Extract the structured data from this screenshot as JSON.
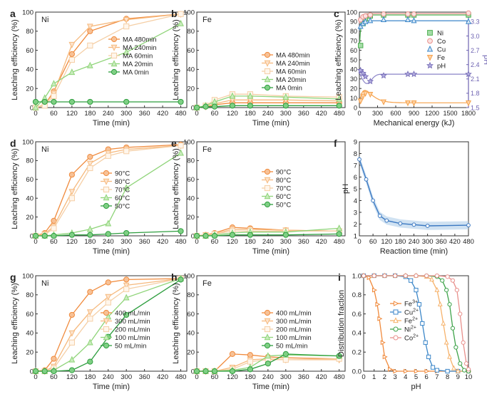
{
  "figure_colors": {
    "c1": "#f08a3c",
    "c2": "#f6b97d",
    "c3": "#f5cfa6",
    "c4": "#8fd479",
    "c5": "#2e9e3f",
    "ni": "#4caf50",
    "co": "#e8908c",
    "cu": "#3b86c8",
    "fe": "#f6a14a",
    "ph": "#6e63b2",
    "fit_purple": "#8a83c7",
    "blue_line": "#3a78c2",
    "blue_band": "#a9cbe8"
  },
  "chart_data": [
    {
      "id": "a",
      "panel_label": "a",
      "type": "line",
      "element": "Ni",
      "xlabel": "Time (min)",
      "ylabel": "Leaching efficiency (%)",
      "xlim": [
        0,
        500
      ],
      "ylim": [
        0,
        100
      ],
      "xticks": [
        0,
        60,
        120,
        180,
        240,
        300,
        360,
        420,
        480
      ],
      "yticks": [
        0,
        20,
        40,
        60,
        80,
        100
      ],
      "x": [
        0,
        30,
        60,
        120,
        180,
        300,
        480
      ],
      "series": [
        {
          "name": "MA 480min",
          "values": [
            0,
            3,
            17,
            56,
            80,
            93,
            98
          ]
        },
        {
          "name": "MA 240min",
          "values": [
            0,
            3,
            15,
            66,
            85,
            92,
            98
          ]
        },
        {
          "name": "MA 60min",
          "values": [
            0,
            2,
            12,
            50,
            65,
            85,
            98
          ]
        },
        {
          "name": "MA 20min",
          "values": [
            0,
            10,
            25,
            37,
            44,
            58,
            88
          ]
        },
        {
          "name": "MA 0min",
          "values": [
            6,
            6,
            6,
            6,
            6,
            6,
            6
          ]
        }
      ]
    },
    {
      "id": "b",
      "panel_label": "b",
      "type": "line",
      "element": "Fe",
      "xlabel": "Time (min)",
      "ylabel": "Leaching efficiency (%)",
      "xlim": [
        0,
        500
      ],
      "ylim": [
        0,
        100
      ],
      "xticks": [
        0,
        60,
        120,
        180,
        240,
        300,
        360,
        420,
        480
      ],
      "yticks": [
        0,
        20,
        40,
        60,
        80,
        100
      ],
      "x": [
        0,
        30,
        60,
        120,
        180,
        300,
        480
      ],
      "series": [
        {
          "name": "MA 480min",
          "values": [
            0,
            1,
            3,
            5,
            5,
            5,
            5
          ]
        },
        {
          "name": "MA 240min",
          "values": [
            0,
            1,
            4,
            8,
            8,
            8,
            7
          ]
        },
        {
          "name": "MA 60min",
          "values": [
            0,
            2,
            8,
            14,
            14,
            12,
            11
          ]
        },
        {
          "name": "MA 20min",
          "values": [
            0,
            2,
            6,
            12,
            12,
            11,
            9
          ]
        },
        {
          "name": "MA 0min",
          "values": [
            0,
            1,
            1,
            2,
            2,
            2,
            2
          ]
        }
      ]
    },
    {
      "id": "c",
      "panel_label": "c",
      "type": "scatter",
      "xlabel": "Mechanical energy (kJ)",
      "ylabel": "Leaching efficiency (%)",
      "y2label": "pH",
      "xlim": [
        0,
        1800
      ],
      "ylim": [
        0,
        100
      ],
      "y2lim": [
        1.5,
        3.5
      ],
      "xticks": [
        0,
        300,
        600,
        900,
        1200,
        1500,
        1800
      ],
      "yticks": [
        0,
        10,
        20,
        30,
        40,
        50,
        60,
        70,
        80,
        90,
        100
      ],
      "y2ticks": [
        1.5,
        1.8,
        2.1,
        2.4,
        2.7,
        3.0,
        3.3
      ],
      "series": [
        {
          "name": "Ni",
          "x": [
            20,
            60,
            100,
            180,
            400,
            800,
            900,
            1800
          ],
          "values": [
            65,
            88,
            93,
            96,
            97,
            97,
            97,
            97
          ],
          "axis": "left"
        },
        {
          "name": "Co",
          "x": [
            20,
            60,
            100,
            180,
            400,
            800,
            900,
            1800
          ],
          "values": [
            92,
            95,
            96,
            97,
            98,
            98,
            98,
            99
          ],
          "axis": "left"
        },
        {
          "name": "Cu",
          "x": [
            20,
            60,
            100,
            180,
            400,
            800,
            900,
            1800
          ],
          "values": [
            85,
            88,
            90,
            91,
            92,
            92,
            91,
            90
          ],
          "axis": "left"
        },
        {
          "name": "Fe",
          "x": [
            20,
            60,
            100,
            180,
            400,
            800,
            900,
            1800
          ],
          "values": [
            7,
            12,
            15,
            14,
            6,
            5,
            5,
            5
          ],
          "axis": "left"
        },
        {
          "name": "pH",
          "x": [
            20,
            60,
            100,
            180,
            400,
            800,
            900,
            1800
          ],
          "values": [
            2.28,
            2.22,
            2.15,
            2.05,
            2.17,
            2.2,
            2.2,
            2.2
          ],
          "axis": "right"
        }
      ]
    },
    {
      "id": "d",
      "panel_label": "d",
      "type": "line",
      "element": "Ni",
      "xlabel": "Time (min)",
      "ylabel": "Leaching efficiency (%)",
      "xlim": [
        0,
        500
      ],
      "ylim": [
        0,
        100
      ],
      "xticks": [
        0,
        60,
        120,
        180,
        240,
        300,
        360,
        420,
        480
      ],
      "yticks": [
        0,
        20,
        40,
        60,
        80,
        100
      ],
      "x": [
        0,
        30,
        60,
        120,
        180,
        240,
        300,
        480
      ],
      "series": [
        {
          "name": "90°C",
          "values": [
            0,
            3,
            16,
            65,
            84,
            92,
            94,
            97
          ]
        },
        {
          "name": "80°C",
          "values": [
            0,
            2,
            10,
            47,
            77,
            88,
            92,
            96
          ]
        },
        {
          "name": "70°C",
          "values": [
            0,
            1,
            8,
            40,
            72,
            85,
            90,
            96
          ]
        },
        {
          "name": "60°C",
          "values": [
            0,
            0,
            1,
            3,
            7,
            13,
            51,
            88
          ]
        },
        {
          "name": "50°C",
          "values": [
            0,
            0,
            0,
            1,
            1,
            2,
            3,
            5
          ]
        }
      ]
    },
    {
      "id": "e",
      "panel_label": "e",
      "type": "line",
      "element": "Fe",
      "xlabel": "Time (min)",
      "ylabel": "Leaching efficiency (%)",
      "xlim": [
        0,
        500
      ],
      "ylim": [
        0,
        100
      ],
      "xticks": [
        0,
        60,
        120,
        180,
        240,
        300,
        360,
        420,
        480
      ],
      "yticks": [
        0,
        20,
        40,
        60,
        80,
        100
      ],
      "x": [
        0,
        30,
        60,
        120,
        180,
        300,
        480
      ],
      "series": [
        {
          "name": "90°C",
          "values": [
            0,
            1,
            3,
            9,
            8,
            6,
            5
          ]
        },
        {
          "name": "80°C",
          "values": [
            0,
            1,
            2,
            7,
            7,
            6,
            5
          ]
        },
        {
          "name": "70°C",
          "values": [
            0,
            0,
            2,
            5,
            5,
            5,
            5
          ]
        },
        {
          "name": "60°C",
          "values": [
            0,
            0,
            1,
            3,
            4,
            4,
            8
          ]
        },
        {
          "name": "50°C",
          "values": [
            0,
            0,
            0,
            1,
            1,
            1,
            2
          ]
        }
      ]
    },
    {
      "id": "f",
      "panel_label": "f",
      "type": "line",
      "xlabel": "Reaction time (min)",
      "ylabel": "pH",
      "xlim": [
        0,
        480
      ],
      "ylim": [
        1,
        9
      ],
      "xticks": [
        0,
        60,
        120,
        180,
        240,
        300,
        360,
        420,
        480
      ],
      "yticks": [
        1,
        2,
        3,
        4,
        5,
        6,
        7,
        8,
        9
      ],
      "x": [
        0,
        30,
        60,
        90,
        120,
        180,
        240,
        300,
        480
      ],
      "values": [
        7.5,
        5.8,
        4.0,
        2.7,
        2.3,
        2.05,
        1.95,
        1.85,
        1.9
      ],
      "band": 0.35
    },
    {
      "id": "g",
      "panel_label": "g",
      "type": "line",
      "element": "Ni",
      "xlabel": "Time (min)",
      "ylabel": "Leaching efficiency (%)",
      "xlim": [
        0,
        500
      ],
      "ylim": [
        0,
        100
      ],
      "xticks": [
        0,
        60,
        120,
        180,
        240,
        300,
        360,
        420,
        480
      ],
      "yticks": [
        0,
        20,
        40,
        60,
        80,
        100
      ],
      "x": [
        0,
        30,
        60,
        120,
        180,
        240,
        300,
        480
      ],
      "series": [
        {
          "name": "400 mL/min",
          "values": [
            0,
            1,
            13,
            59,
            83,
            93,
            96,
            97
          ]
        },
        {
          "name": "300 mL/min",
          "values": [
            0,
            0,
            5,
            40,
            62,
            78,
            90,
            97
          ]
        },
        {
          "name": "200 mL/min",
          "values": [
            0,
            0,
            3,
            30,
            55,
            72,
            86,
            97
          ]
        },
        {
          "name": "100 mL/min",
          "values": [
            0,
            0,
            1,
            12,
            30,
            57,
            77,
            97
          ]
        },
        {
          "name": "50 mL/min",
          "values": [
            0,
            0,
            0,
            1,
            10,
            36,
            59,
            96
          ]
        }
      ]
    },
    {
      "id": "h",
      "panel_label": "h",
      "type": "line",
      "element": "Fe",
      "xlabel": "Time (min)",
      "ylabel": "Leaching efficiency (%)",
      "xlim": [
        0,
        500
      ],
      "ylim": [
        0,
        100
      ],
      "xticks": [
        0,
        60,
        120,
        180,
        240,
        300,
        360,
        420,
        480
      ],
      "yticks": [
        0,
        20,
        40,
        60,
        80,
        100
      ],
      "x": [
        0,
        30,
        60,
        120,
        180,
        240,
        300,
        480
      ],
      "series": [
        {
          "name": "400 mL/min",
          "values": [
            0,
            0,
            0,
            18,
            17,
            15,
            14,
            13
          ]
        },
        {
          "name": "300 mL/min",
          "values": [
            0,
            0,
            0,
            4,
            12,
            13,
            12,
            12
          ]
        },
        {
          "name": "200 mL/min",
          "values": [
            0,
            0,
            0,
            2,
            10,
            12,
            12,
            13
          ]
        },
        {
          "name": "100 mL/min",
          "values": [
            0,
            0,
            0,
            1,
            4,
            16,
            17,
            16
          ]
        },
        {
          "name": "50 mL/min",
          "values": [
            0,
            0,
            0,
            0,
            2,
            8,
            18,
            16
          ]
        }
      ]
    },
    {
      "id": "i",
      "panel_label": "i",
      "type": "line",
      "xlabel": "pH",
      "ylabel": "Distribution fraction",
      "xlim": [
        0,
        10
      ],
      "ylim": [
        0,
        1
      ],
      "xticks": [
        0,
        1,
        2,
        3,
        4,
        5,
        6,
        7,
        8,
        9,
        10
      ],
      "yticks": [
        0.0,
        0.2,
        0.4,
        0.6,
        0.8,
        1.0
      ],
      "series": [
        {
          "name": "Fe",
          "ion_charge": "3+",
          "x": [
            0,
            0.5,
            1,
            1.3,
            1.5,
            1.8,
            2,
            2.5,
            3,
            4,
            5,
            6,
            7,
            8,
            9,
            10
          ],
          "values": [
            1,
            0.98,
            0.85,
            0.7,
            0.55,
            0.3,
            0.15,
            0.02,
            0,
            0,
            0,
            0,
            0,
            0,
            0,
            0
          ]
        },
        {
          "name": "Cu",
          "ion_charge": "2+",
          "x": [
            0,
            1,
            2,
            3,
            4,
            4.5,
            5,
            5.3,
            5.6,
            5.9,
            6.2,
            6.6,
            7,
            8,
            9,
            10
          ],
          "values": [
            1,
            1,
            1,
            1,
            0.99,
            0.95,
            0.85,
            0.7,
            0.5,
            0.3,
            0.15,
            0.04,
            0.01,
            0,
            0,
            0
          ]
        },
        {
          "name": "Fe",
          "ion_charge": "2+",
          "x": [
            0,
            1,
            2,
            3,
            4,
            5,
            6,
            6.5,
            7,
            7.3,
            7.6,
            7.9,
            8.2,
            8.6,
            9,
            10
          ],
          "values": [
            1,
            1,
            1,
            1,
            1,
            1,
            0.99,
            0.96,
            0.85,
            0.7,
            0.5,
            0.3,
            0.15,
            0.03,
            0,
            0
          ]
        },
        {
          "name": "Ni",
          "ion_charge": "2+",
          "x": [
            0,
            1,
            2,
            3,
            4,
            5,
            6,
            7,
            7.5,
            7.9,
            8.2,
            8.5,
            8.8,
            9.2,
            9.6,
            10
          ],
          "values": [
            1,
            1,
            1,
            1,
            1,
            1,
            1,
            0.99,
            0.95,
            0.85,
            0.7,
            0.45,
            0.25,
            0.08,
            0.01,
            0
          ]
        },
        {
          "name": "Co",
          "ion_charge": "2+",
          "x": [
            0,
            1,
            2,
            3,
            4,
            5,
            6,
            7,
            8,
            8.5,
            8.9,
            9.2,
            9.5,
            9.8,
            10
          ],
          "values": [
            1,
            1,
            1,
            1,
            1,
            1,
            1,
            1,
            0.99,
            0.95,
            0.85,
            0.6,
            0.3,
            0.08,
            0.02
          ]
        }
      ]
    }
  ]
}
